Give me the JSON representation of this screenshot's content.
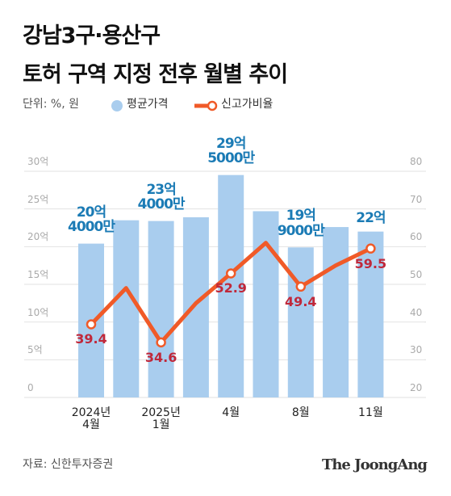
{
  "chart_data": {
    "type": "bar_line",
    "title": "강남3구·용산구",
    "subtitle": "토허 구역 지정 전후 월별 추이",
    "unit": "단위: %, 원",
    "source": "자료: 신한투자증권",
    "brand": "The JoongAng",
    "categories": [
      "2024년\n4월",
      null,
      "2025년\n1월",
      null,
      "4월",
      null,
      "8월",
      null,
      "11월"
    ],
    "series": [
      {
        "name": "평균가격",
        "type": "bar",
        "color": "#a9cdee",
        "label_color": "#1b7bb5",
        "values": [
          20.4,
          23.5,
          23.4,
          23.9,
          29.5,
          24.7,
          19.9,
          22.6,
          22
        ],
        "value_labels": [
          "20억\n4000만",
          null,
          "23억\n4000만",
          null,
          "29억\n5000만",
          null,
          "19억\n9000만",
          null,
          "22억"
        ]
      },
      {
        "name": "신고가비율",
        "type": "line",
        "axis": "y2",
        "color": "#f05a28",
        "label_color": "#c0283a",
        "values": [
          39.4,
          49,
          34.6,
          45,
          52.9,
          61,
          49.4,
          55,
          59.5
        ],
        "value_labels": [
          "39.4",
          null,
          "34.6",
          null,
          "52.9",
          null,
          "49.4",
          null,
          "59.5"
        ]
      }
    ],
    "ylim": [
      0,
      30
    ],
    "yticks": [
      0,
      {
        "value": 5,
        "label": "5억"
      },
      {
        "value": 10,
        "label": "10억"
      },
      {
        "value": 15,
        "label": "15억"
      },
      {
        "value": 20,
        "label": "20억"
      },
      {
        "value": 25,
        "label": "25억"
      },
      {
        "value": 30,
        "label": "30억"
      }
    ],
    "y2lim": [
      20,
      80
    ],
    "y2ticks": [
      20,
      30,
      40,
      50,
      60,
      70,
      80
    ],
    "grid": true
  }
}
